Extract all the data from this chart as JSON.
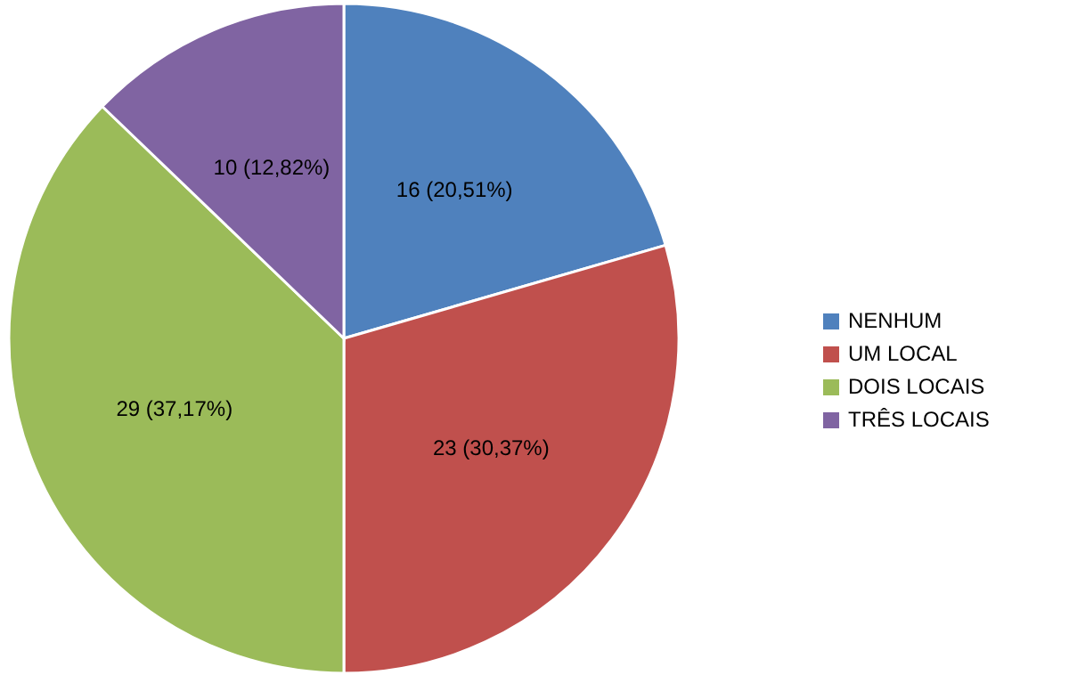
{
  "chart_data": {
    "type": "pie",
    "categories": [
      "NENHUM",
      "UM LOCAL",
      "DOIS LOCAIS",
      "TRÊS LOCAIS"
    ],
    "values": [
      16,
      23,
      29,
      10
    ],
    "colors": [
      "#4f81bd",
      "#c0504d",
      "#9bbb59",
      "#8064a2"
    ],
    "value_labels": [
      "16 (20,51%)",
      "23 (30,37%)",
      "29 (37,17%)",
      "10 (12,82%)"
    ],
    "legend": "right"
  }
}
